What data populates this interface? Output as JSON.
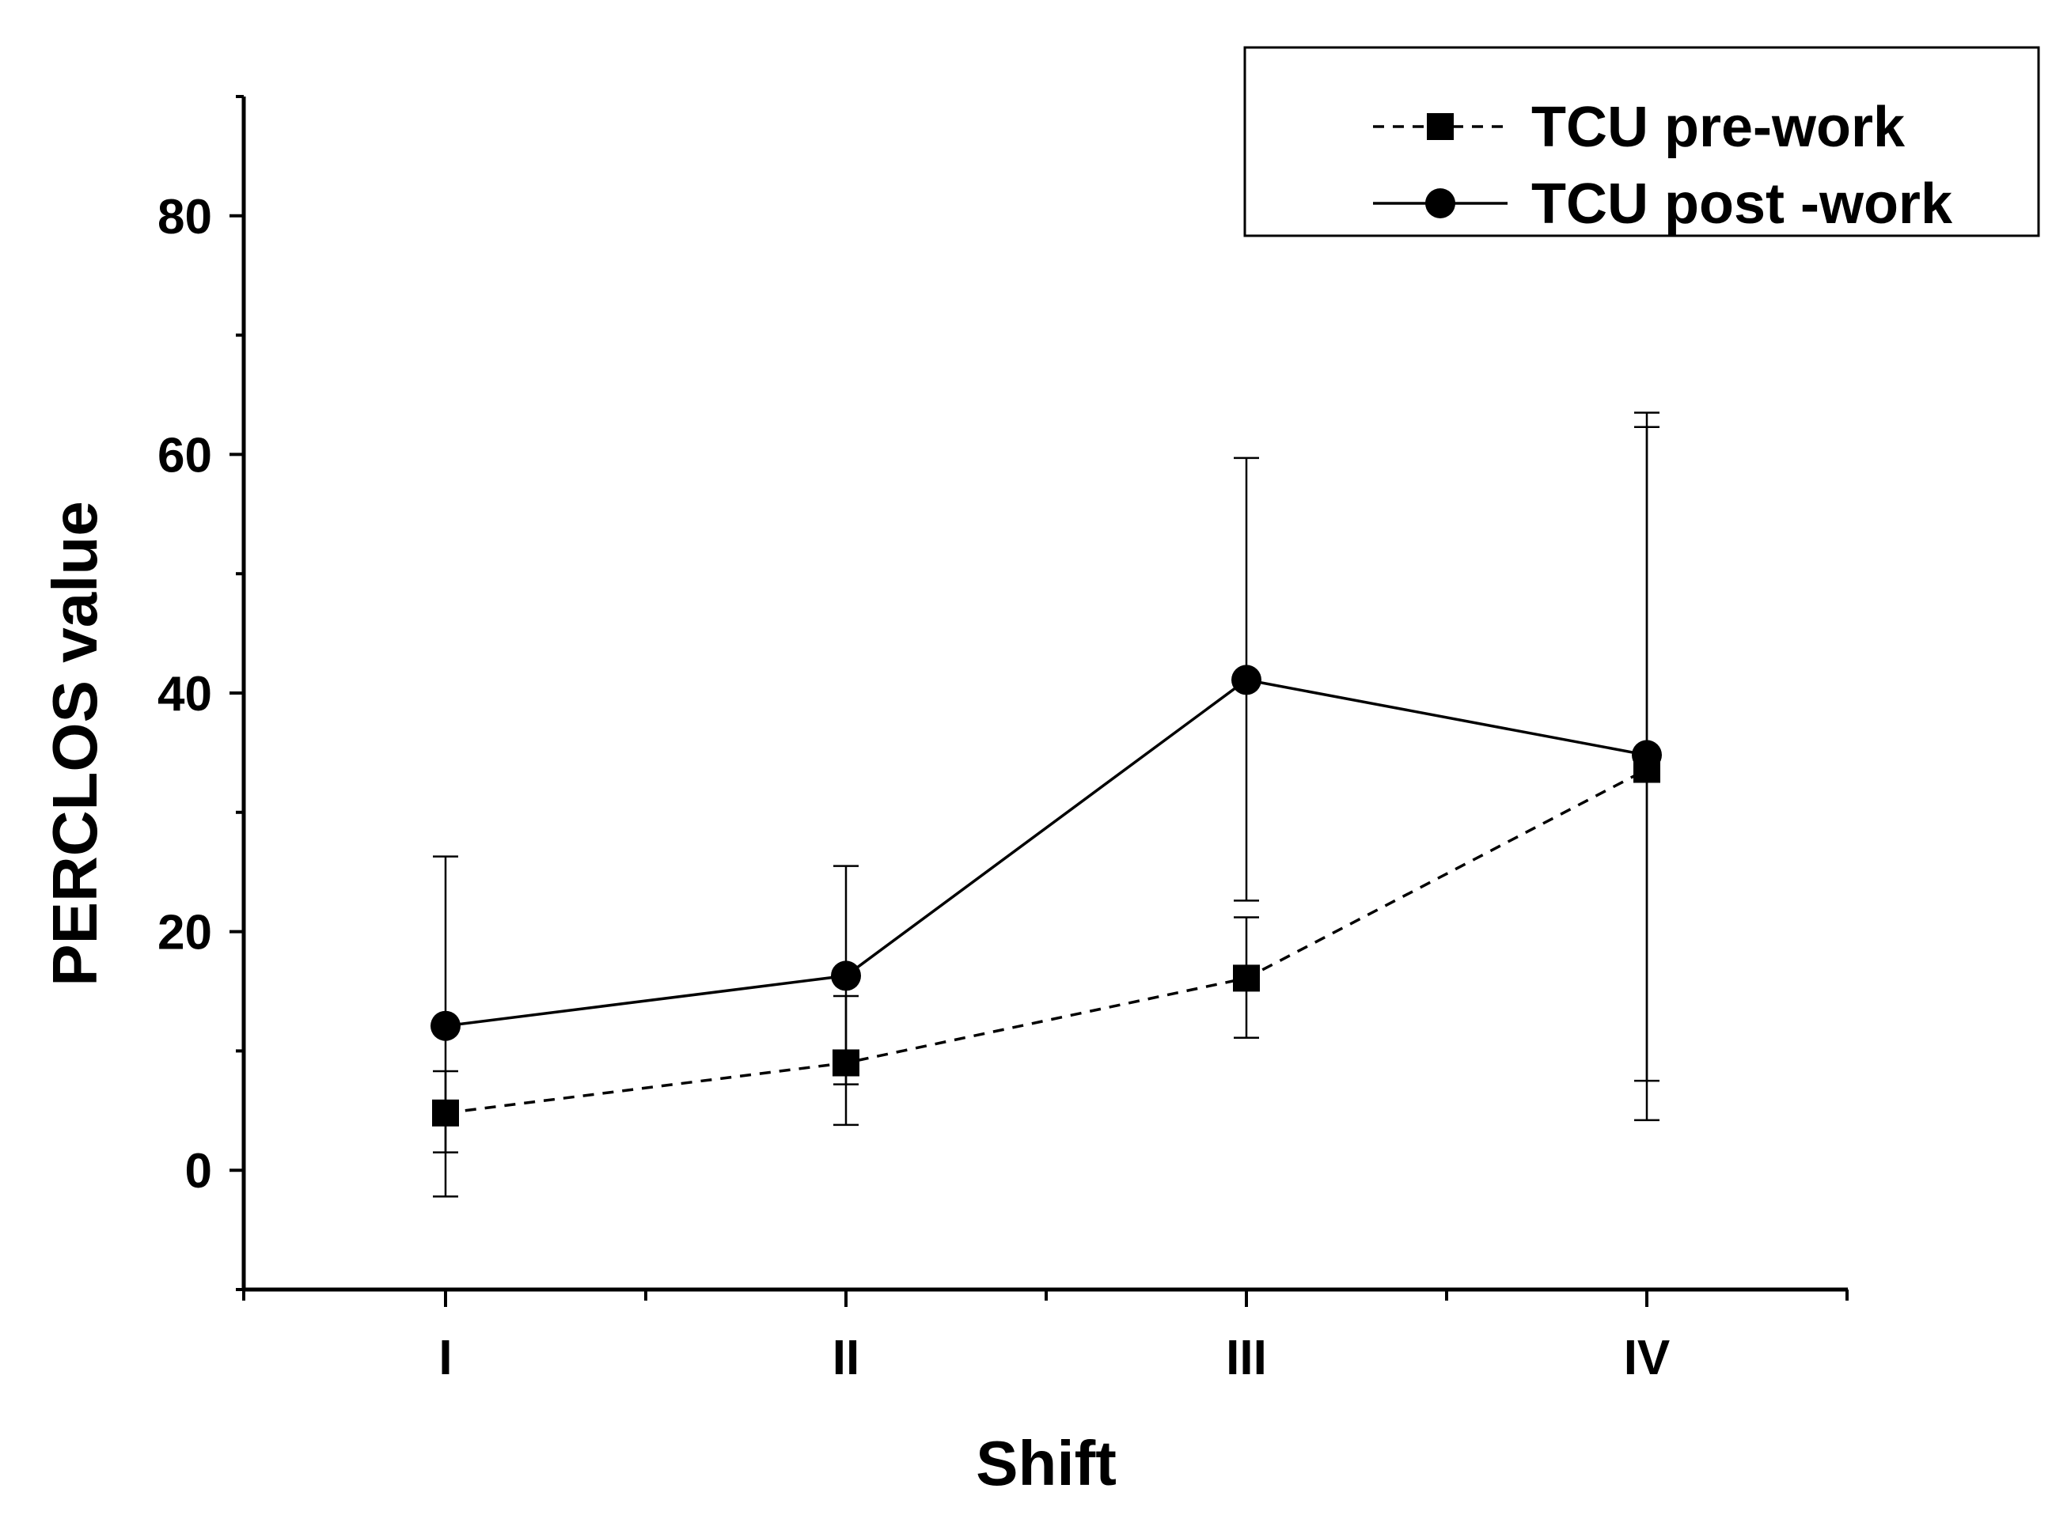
{
  "chart_data": {
    "type": "line",
    "title": "",
    "xlabel": "Shift",
    "ylabel": "PERCLOS value",
    "categories": [
      "I",
      "II",
      "III",
      "IV"
    ],
    "ylim": [
      -10,
      90
    ],
    "yticks": [
      0,
      20,
      40,
      60,
      80
    ],
    "yticks_minor": [
      -10,
      10,
      30,
      50,
      70,
      90
    ],
    "grid": false,
    "legend_position": "top-right",
    "series": [
      {
        "name": "TCU pre-work",
        "line_style": "dashed",
        "marker": "square",
        "values": [
          4.8,
          9.0,
          16.1,
          33.6
        ],
        "err_low": [
          -2.2,
          3.8,
          11.1,
          4.2
        ],
        "err_high": [
          8.3,
          14.6,
          21.2,
          63.5
        ]
      },
      {
        "name": "TCU post -work",
        "line_style": "solid",
        "marker": "circle",
        "values": [
          12.1,
          16.3,
          41.1,
          34.8
        ],
        "err_low": [
          1.5,
          7.2,
          22.6,
          7.5
        ],
        "err_high": [
          26.3,
          25.5,
          59.7,
          62.3
        ]
      }
    ]
  }
}
